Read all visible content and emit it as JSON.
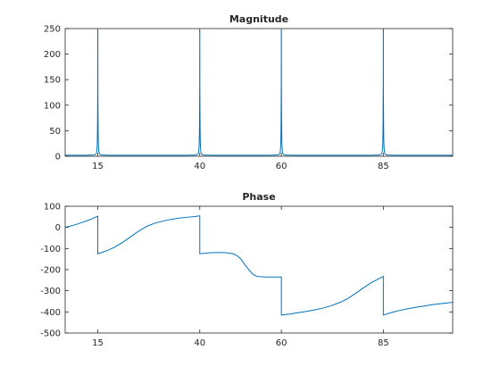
{
  "chart_data": [
    {
      "type": "line",
      "title": "Magnitude",
      "xlabel": "",
      "ylabel": "",
      "xlim": [
        7,
        102
      ],
      "ylim": [
        0,
        250
      ],
      "grid": false,
      "xticks": [
        15,
        40,
        60,
        85
      ],
      "yticks": [
        0,
        50,
        100,
        150,
        200,
        250
      ],
      "xtick_labels": [
        "15",
        "40",
        "60",
        "85"
      ],
      "ytick_labels": [
        "0",
        "50",
        "100",
        "150",
        "200",
        "250"
      ],
      "peaks": [
        {
          "x": 15,
          "y": 245,
          "shoulder": 150
        },
        {
          "x": 40,
          "y": 245,
          "shoulder": 150
        },
        {
          "x": 60,
          "y": 245,
          "shoulder": 150
        },
        {
          "x": 85,
          "y": 245,
          "shoulder": 150
        }
      ],
      "baseline": 2,
      "color": "#0072bd"
    },
    {
      "type": "line",
      "title": "Phase",
      "xlabel": "",
      "ylabel": "",
      "xlim": [
        7,
        102
      ],
      "ylim": [
        -500,
        100
      ],
      "grid": false,
      "xticks": [
        15,
        40,
        60,
        85
      ],
      "yticks": [
        -500,
        -400,
        -300,
        -200,
        -100,
        0,
        100
      ],
      "xtick_labels": [
        "15",
        "40",
        "60",
        "85"
      ],
      "ytick_labels": [
        "-500",
        "-400",
        "-300",
        "-200",
        "-100",
        "0",
        "100"
      ],
      "x": [
        7,
        9,
        11,
        13,
        15,
        15,
        17,
        19,
        21,
        23,
        25,
        27,
        29,
        31,
        33,
        35,
        37,
        39,
        40,
        40,
        42,
        44,
        46,
        48,
        49,
        50,
        51,
        52,
        53,
        54,
        56,
        58,
        60,
        60,
        62,
        64,
        66,
        68,
        70,
        72,
        74,
        76,
        78,
        80,
        82,
        84,
        85,
        85,
        87,
        89,
        91,
        93,
        95,
        97,
        99,
        101,
        102
      ],
      "y": [
        0,
        10,
        22,
        36,
        53,
        -125,
        -112,
        -95,
        -72,
        -45,
        -18,
        5,
        20,
        30,
        38,
        44,
        48,
        52,
        55,
        -125,
        -121,
        -119,
        -119,
        -124,
        -132,
        -148,
        -175,
        -200,
        -222,
        -232,
        -235,
        -235,
        -235,
        -415,
        -410,
        -404,
        -398,
        -391,
        -383,
        -372,
        -358,
        -340,
        -315,
        -288,
        -262,
        -242,
        -232,
        -415,
        -403,
        -393,
        -385,
        -378,
        -372,
        -366,
        -361,
        -357,
        -355
      ],
      "color": "#0072bd"
    }
  ]
}
